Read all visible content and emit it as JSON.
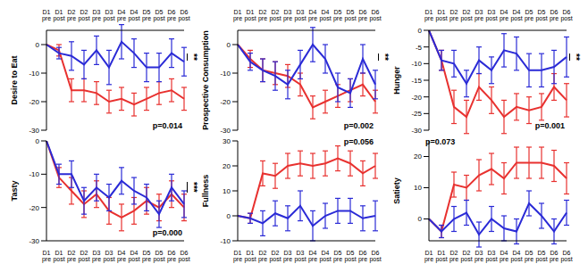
{
  "chart_data": [
    {
      "type": "line",
      "ylabel": "Desire to Eat",
      "categories": [
        "D1 pre",
        "D1 post",
        "D2 pre",
        "D2 post",
        "D3 pre",
        "D3 post",
        "D4 pre",
        "D4 post",
        "D5 pre",
        "D5 post",
        "D6 pre",
        "D6 post"
      ],
      "ylim": [
        -30,
        5
      ],
      "yticks": [
        -30,
        -20,
        -10,
        0
      ],
      "p_value_label": "p=0.014",
      "significance": "**",
      "series": [
        {
          "color": "#e8312f",
          "values": [
            0,
            -2,
            -16,
            -16,
            -17,
            -20,
            -19,
            -21,
            -19,
            -17,
            -16,
            -19
          ],
          "errors": [
            0,
            2,
            4,
            4,
            4,
            4,
            4,
            4,
            4,
            4,
            4,
            4
          ]
        },
        {
          "color": "#2a2ad6",
          "values": [
            0,
            -3,
            -4,
            -7,
            -2,
            -8,
            1,
            -3,
            -8,
            -8,
            -3,
            -6
          ],
          "errors": [
            0,
            2,
            5,
            5,
            5,
            6,
            6,
            5,
            5,
            5,
            5,
            5
          ]
        }
      ]
    },
    {
      "type": "line",
      "ylabel": "Prospective Consumption",
      "categories": [
        "D1 pre",
        "D1 post",
        "D2 pre",
        "D2 post",
        "D3 pre",
        "D3 post",
        "D4 pre",
        "D4 post",
        "D5 pre",
        "D5 post",
        "D6 pre",
        "D6 post"
      ],
      "ylim": [
        -30,
        5
      ],
      "yticks": [
        -30,
        -20,
        -10,
        0
      ],
      "p_value_label": "p=0.002",
      "significance": "**",
      "series": [
        {
          "color": "#e8312f",
          "values": [
            0,
            -5,
            -9,
            -10,
            -11,
            -14,
            -22,
            -20,
            -18,
            -16,
            -14,
            -20
          ],
          "errors": [
            0,
            3,
            4,
            4,
            4,
            4,
            4,
            4,
            4,
            4,
            4,
            4
          ]
        },
        {
          "color": "#2a2ad6",
          "values": [
            0,
            -6,
            -9,
            -11,
            -14,
            -7,
            0,
            -5,
            -15,
            -17,
            -5,
            -14
          ],
          "errors": [
            0,
            3,
            4,
            5,
            5,
            5,
            6,
            5,
            5,
            5,
            5,
            5
          ]
        }
      ]
    },
    {
      "type": "line",
      "ylabel": "Hunger",
      "categories": [
        "D1 pre",
        "D1 post",
        "D2 pre",
        "D2 post",
        "D3 pre",
        "D3 post",
        "D4 pre",
        "D4 post",
        "D5 pre",
        "D5 post",
        "D6 pre",
        "D6 post"
      ],
      "ylim": [
        -30,
        0
      ],
      "yticks": [
        -30,
        -25,
        -20,
        -15,
        -10,
        -5,
        0
      ],
      "p_value_label": "p=0.001",
      "significance": "**",
      "series": [
        {
          "color": "#e8312f",
          "values": [
            0,
            -9,
            -23,
            -26,
            -17,
            -21,
            -26,
            -23,
            -24,
            -23,
            -17,
            -21
          ],
          "errors": [
            0,
            3,
            5,
            5,
            4,
            4,
            5,
            4,
            4,
            4,
            4,
            5
          ]
        },
        {
          "color": "#2a2ad6",
          "values": [
            0,
            -9,
            -10,
            -16,
            -9,
            -12,
            -6,
            -7,
            -12,
            -12,
            -11,
            -8
          ],
          "errors": [
            0,
            3,
            4,
            4,
            4,
            4,
            5,
            5,
            5,
            5,
            5,
            6
          ]
        }
      ]
    },
    {
      "type": "line",
      "ylabel": "Tasty",
      "categories": [
        "D1 pre",
        "D1 post",
        "D2 pre",
        "D2 post",
        "D3 pre",
        "D3 post",
        "D4 pre",
        "D4 post",
        "D5 pre",
        "D5 post",
        "D6 pre",
        "D6 post"
      ],
      "ylim": [
        -30,
        0
      ],
      "yticks": [
        -30,
        -20,
        -10,
        0
      ],
      "p_value_label": "p=0.000",
      "significance": "***",
      "series": [
        {
          "color": "#e8312f",
          "values": [
            0,
            -11,
            -15,
            -19,
            -16,
            -21,
            -23,
            -21,
            -18,
            -20,
            -16,
            -20
          ],
          "errors": [
            0,
            3,
            4,
            4,
            4,
            4,
            4,
            4,
            4,
            4,
            4,
            4
          ]
        },
        {
          "color": "#2a2ad6",
          "values": [
            0,
            -10,
            -10,
            -18,
            -14,
            -17,
            -12,
            -15,
            -17,
            -22,
            -14,
            -19
          ],
          "errors": [
            0,
            3,
            4,
            4,
            4,
            4,
            4,
            4,
            4,
            4,
            4,
            4
          ]
        }
      ]
    },
    {
      "type": "line",
      "ylabel": "Fullness",
      "categories": [
        "D1 pre",
        "D1 post",
        "D2 pre",
        "D2 post",
        "D3 pre",
        "D3 post",
        "D4 pre",
        "D4 post",
        "D5 pre",
        "D5 post",
        "D6 pre",
        "D6 post"
      ],
      "ylim": [
        -10,
        30
      ],
      "yticks": [
        -10,
        0,
        10,
        20,
        30
      ],
      "p_value_label": "p=0.056",
      "series": [
        {
          "color": "#e8312f",
          "values": [
            0,
            -1,
            17,
            16,
            20,
            21,
            20,
            21,
            23,
            21,
            17,
            20
          ],
          "errors": [
            0,
            2,
            5,
            5,
            5,
            5,
            5,
            5,
            5,
            5,
            5,
            5
          ]
        },
        {
          "color": "#2a2ad6",
          "values": [
            0,
            -1,
            -3,
            1,
            -1,
            4,
            -4,
            0,
            2,
            2,
            -1,
            0
          ],
          "errors": [
            0,
            2,
            5,
            5,
            5,
            6,
            6,
            5,
            5,
            5,
            5,
            6
          ]
        }
      ]
    },
    {
      "type": "line",
      "ylabel": "Satiety",
      "categories": [
        "D1 pre",
        "D1 post",
        "D2 pre",
        "D2 post",
        "D3 pre",
        "D3 post",
        "D4 pre",
        "D4 post",
        "D5 pre",
        "D5 post",
        "D6 pre",
        "D6 post"
      ],
      "ylim": [
        -7,
        25
      ],
      "yticks": [
        0,
        10,
        20
      ],
      "p_value_label": "p=0.073",
      "series": [
        {
          "color": "#e8312f",
          "values": [
            0,
            -4,
            11,
            10,
            14,
            16,
            13,
            18,
            18,
            18,
            17,
            13
          ],
          "errors": [
            0,
            2,
            4,
            4,
            5,
            5,
            5,
            5,
            5,
            5,
            5,
            5
          ]
        },
        {
          "color": "#2a2ad6",
          "values": [
            0,
            -4,
            0,
            2,
            -5,
            0,
            -3,
            -4,
            5,
            1,
            -4,
            2
          ],
          "errors": [
            0,
            2,
            4,
            4,
            4,
            4,
            4,
            4,
            4,
            4,
            4,
            4
          ]
        }
      ]
    }
  ]
}
